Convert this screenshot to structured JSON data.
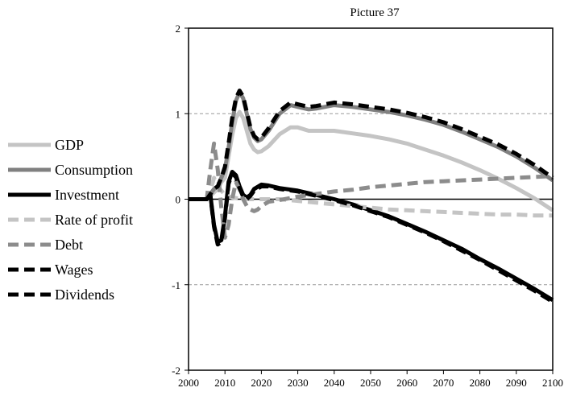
{
  "chart_data": {
    "type": "line",
    "title": "Picture 37",
    "xlabel": "",
    "ylabel": "",
    "xlim": [
      2000,
      2100
    ],
    "ylim": [
      -2,
      2
    ],
    "x_ticks": [
      2000,
      2010,
      2020,
      2030,
      2040,
      2050,
      2060,
      2070,
      2080,
      2090,
      2100
    ],
    "y_ticks": [
      -2,
      -1,
      0,
      1,
      2
    ],
    "reference_lines": [
      1,
      -1
    ],
    "zero_line": 0,
    "legend_position": "left",
    "series": [
      {
        "name": "GDP",
        "color": "#c4c4c4",
        "dash": "solid",
        "points": [
          [
            2000,
            0
          ],
          [
            2005,
            0
          ],
          [
            2007,
            0.08
          ],
          [
            2008,
            0.12
          ],
          [
            2009,
            0.2
          ],
          [
            2010,
            0.25
          ],
          [
            2011,
            0.5
          ],
          [
            2012,
            0.75
          ],
          [
            2013,
            0.95
          ],
          [
            2014,
            1.02
          ],
          [
            2015,
            0.95
          ],
          [
            2016,
            0.8
          ],
          [
            2017,
            0.65
          ],
          [
            2018,
            0.58
          ],
          [
            2019,
            0.55
          ],
          [
            2020,
            0.56
          ],
          [
            2022,
            0.62
          ],
          [
            2025,
            0.76
          ],
          [
            2028,
            0.84
          ],
          [
            2030,
            0.84
          ],
          [
            2033,
            0.8
          ],
          [
            2035,
            0.8
          ],
          [
            2040,
            0.8
          ],
          [
            2045,
            0.77
          ],
          [
            2050,
            0.74
          ],
          [
            2055,
            0.7
          ],
          [
            2060,
            0.65
          ],
          [
            2065,
            0.58
          ],
          [
            2070,
            0.51
          ],
          [
            2075,
            0.43
          ],
          [
            2080,
            0.34
          ],
          [
            2085,
            0.24
          ],
          [
            2090,
            0.13
          ],
          [
            2095,
            0.01
          ],
          [
            2100,
            -0.13
          ]
        ]
      },
      {
        "name": "Consumption",
        "color": "#808080",
        "dash": "solid",
        "points": [
          [
            2000,
            0
          ],
          [
            2005,
            0
          ],
          [
            2007,
            0.12
          ],
          [
            2008,
            0.15
          ],
          [
            2009,
            0.25
          ],
          [
            2010,
            0.35
          ],
          [
            2011,
            0.6
          ],
          [
            2012,
            0.9
          ],
          [
            2013,
            1.15
          ],
          [
            2014,
            1.25
          ],
          [
            2015,
            1.18
          ],
          [
            2016,
            1.0
          ],
          [
            2017,
            0.82
          ],
          [
            2018,
            0.72
          ],
          [
            2019,
            0.68
          ],
          [
            2020,
            0.7
          ],
          [
            2022,
            0.8
          ],
          [
            2025,
            1.0
          ],
          [
            2028,
            1.1
          ],
          [
            2030,
            1.08
          ],
          [
            2033,
            1.05
          ],
          [
            2035,
            1.06
          ],
          [
            2040,
            1.1
          ],
          [
            2045,
            1.08
          ],
          [
            2050,
            1.05
          ],
          [
            2055,
            1.02
          ],
          [
            2060,
            0.98
          ],
          [
            2065,
            0.93
          ],
          [
            2070,
            0.87
          ],
          [
            2075,
            0.79
          ],
          [
            2080,
            0.7
          ],
          [
            2085,
            0.61
          ],
          [
            2090,
            0.5
          ],
          [
            2095,
            0.37
          ],
          [
            2100,
            0.22
          ]
        ]
      },
      {
        "name": "Investment",
        "color": "#000000",
        "dash": "solid",
        "points": [
          [
            2000,
            0
          ],
          [
            2005,
            0
          ],
          [
            2006,
            0.05
          ],
          [
            2007,
            -0.3
          ],
          [
            2008,
            -0.5
          ],
          [
            2009,
            -0.48
          ],
          [
            2010,
            -0.2
          ],
          [
            2011,
            0.2
          ],
          [
            2012,
            0.32
          ],
          [
            2013,
            0.28
          ],
          [
            2014,
            0.15
          ],
          [
            2015,
            0.05
          ],
          [
            2016,
            0.02
          ],
          [
            2017,
            0.05
          ],
          [
            2018,
            0.12
          ],
          [
            2020,
            0.17
          ],
          [
            2022,
            0.16
          ],
          [
            2025,
            0.13
          ],
          [
            2030,
            0.1
          ],
          [
            2035,
            0.05
          ],
          [
            2040,
            0.0
          ],
          [
            2045,
            -0.06
          ],
          [
            2050,
            -0.13
          ],
          [
            2055,
            -0.2
          ],
          [
            2060,
            -0.29
          ],
          [
            2065,
            -0.38
          ],
          [
            2070,
            -0.48
          ],
          [
            2075,
            -0.58
          ],
          [
            2080,
            -0.7
          ],
          [
            2085,
            -0.81
          ],
          [
            2090,
            -0.93
          ],
          [
            2095,
            -1.05
          ],
          [
            2100,
            -1.18
          ]
        ]
      },
      {
        "name": "Rate of profit",
        "color": "#c4c4c4",
        "dash": "dashed",
        "points": [
          [
            2000,
            0
          ],
          [
            2005,
            0
          ],
          [
            2006,
            0.1
          ],
          [
            2007,
            0.25
          ],
          [
            2008,
            0.15
          ],
          [
            2009,
            0.1
          ],
          [
            2010,
            0.05
          ],
          [
            2012,
            0.02
          ],
          [
            2015,
            0.0
          ],
          [
            2020,
            0.0
          ],
          [
            2025,
            0.0
          ],
          [
            2030,
            -0.02
          ],
          [
            2035,
            -0.04
          ],
          [
            2040,
            -0.06
          ],
          [
            2045,
            -0.08
          ],
          [
            2050,
            -0.1
          ],
          [
            2055,
            -0.12
          ],
          [
            2060,
            -0.13
          ],
          [
            2065,
            -0.14
          ],
          [
            2070,
            -0.15
          ],
          [
            2075,
            -0.16
          ],
          [
            2080,
            -0.17
          ],
          [
            2085,
            -0.18
          ],
          [
            2090,
            -0.18
          ],
          [
            2095,
            -0.19
          ],
          [
            2100,
            -0.19
          ]
        ]
      },
      {
        "name": "Debt",
        "color": "#8c8c8c",
        "dash": "dashed",
        "points": [
          [
            2000,
            0
          ],
          [
            2005,
            0
          ],
          [
            2006,
            0.35
          ],
          [
            2007,
            0.65
          ],
          [
            2008,
            0.35
          ],
          [
            2009,
            -0.1
          ],
          [
            2010,
            -0.45
          ],
          [
            2011,
            -0.3
          ],
          [
            2012,
            0.0
          ],
          [
            2013,
            0.2
          ],
          [
            2014,
            0.12
          ],
          [
            2015,
            0.0
          ],
          [
            2016,
            -0.08
          ],
          [
            2017,
            -0.12
          ],
          [
            2018,
            -0.14
          ],
          [
            2019,
            -0.12
          ],
          [
            2020,
            -0.08
          ],
          [
            2022,
            -0.03
          ],
          [
            2025,
            -0.01
          ],
          [
            2030,
            0.03
          ],
          [
            2035,
            0.06
          ],
          [
            2040,
            0.09
          ],
          [
            2045,
            0.11
          ],
          [
            2050,
            0.14
          ],
          [
            2055,
            0.16
          ],
          [
            2060,
            0.18
          ],
          [
            2065,
            0.2
          ],
          [
            2070,
            0.21
          ],
          [
            2075,
            0.22
          ],
          [
            2080,
            0.23
          ],
          [
            2085,
            0.24
          ],
          [
            2090,
            0.25
          ],
          [
            2095,
            0.26
          ],
          [
            2100,
            0.27
          ]
        ]
      },
      {
        "name": "Wages",
        "color": "#000000",
        "dash": "dashed",
        "points": [
          [
            2000,
            0
          ],
          [
            2005,
            0
          ],
          [
            2007,
            0.12
          ],
          [
            2008,
            0.15
          ],
          [
            2009,
            0.25
          ],
          [
            2010,
            0.38
          ],
          [
            2011,
            0.65
          ],
          [
            2012,
            0.95
          ],
          [
            2013,
            1.18
          ],
          [
            2014,
            1.27
          ],
          [
            2015,
            1.2
          ],
          [
            2016,
            1.02
          ],
          [
            2017,
            0.84
          ],
          [
            2018,
            0.74
          ],
          [
            2019,
            0.7
          ],
          [
            2020,
            0.72
          ],
          [
            2022,
            0.83
          ],
          [
            2025,
            1.03
          ],
          [
            2028,
            1.13
          ],
          [
            2030,
            1.11
          ],
          [
            2033,
            1.08
          ],
          [
            2035,
            1.09
          ],
          [
            2040,
            1.13
          ],
          [
            2045,
            1.11
          ],
          [
            2050,
            1.08
          ],
          [
            2055,
            1.05
          ],
          [
            2060,
            1.01
          ],
          [
            2065,
            0.96
          ],
          [
            2070,
            0.9
          ],
          [
            2075,
            0.82
          ],
          [
            2080,
            0.73
          ],
          [
            2085,
            0.64
          ],
          [
            2090,
            0.53
          ],
          [
            2095,
            0.4
          ],
          [
            2100,
            0.25
          ]
        ]
      },
      {
        "name": "Dividends",
        "color": "#000000",
        "dash": "dashed",
        "points": [
          [
            2000,
            0
          ],
          [
            2005,
            0
          ],
          [
            2006,
            0.04
          ],
          [
            2007,
            -0.32
          ],
          [
            2008,
            -0.53
          ],
          [
            2009,
            -0.5
          ],
          [
            2010,
            -0.22
          ],
          [
            2011,
            0.18
          ],
          [
            2012,
            0.3
          ],
          [
            2013,
            0.26
          ],
          [
            2014,
            0.13
          ],
          [
            2015,
            0.03
          ],
          [
            2016,
            0.0
          ],
          [
            2017,
            0.04
          ],
          [
            2018,
            0.1
          ],
          [
            2020,
            0.15
          ],
          [
            2022,
            0.15
          ],
          [
            2025,
            0.12
          ],
          [
            2030,
            0.09
          ],
          [
            2035,
            0.04
          ],
          [
            2040,
            -0.01
          ],
          [
            2045,
            -0.07
          ],
          [
            2050,
            -0.14
          ],
          [
            2055,
            -0.21
          ],
          [
            2060,
            -0.3
          ],
          [
            2065,
            -0.39
          ],
          [
            2070,
            -0.49
          ],
          [
            2075,
            -0.6
          ],
          [
            2080,
            -0.71
          ],
          [
            2085,
            -0.83
          ],
          [
            2090,
            -0.95
          ],
          [
            2095,
            -1.07
          ],
          [
            2100,
            -1.2
          ]
        ]
      }
    ]
  }
}
